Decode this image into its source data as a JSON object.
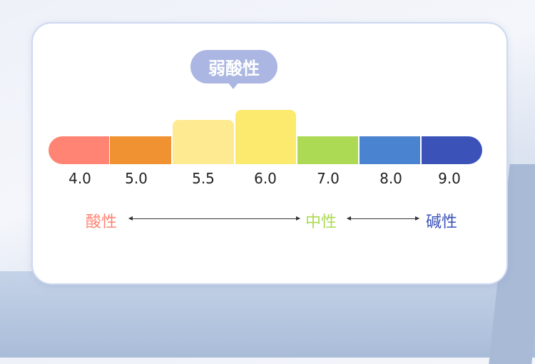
{
  "bubble": {
    "label": "弱酸性",
    "color": "#abb7e2"
  },
  "scale": [
    {
      "label": "4.0",
      "color": "#ff8474"
    },
    {
      "label": "5.0",
      "color": "#f09232"
    },
    {
      "label": "5.5",
      "color": "#feea91"
    },
    {
      "label": "6.0",
      "color": "#fbea6e"
    },
    {
      "label": "7.0",
      "color": "#acda54"
    },
    {
      "label": "8.0",
      "color": "#4a83d0"
    },
    {
      "label": "9.0",
      "color": "#3b52b8"
    }
  ],
  "categories": {
    "acidic": {
      "label": "酸性",
      "color": "#ff8474"
    },
    "neutral": {
      "label": "中性",
      "color": "#acda54"
    },
    "alkaline": {
      "label": "碱性",
      "color": "#3b52b8"
    }
  }
}
